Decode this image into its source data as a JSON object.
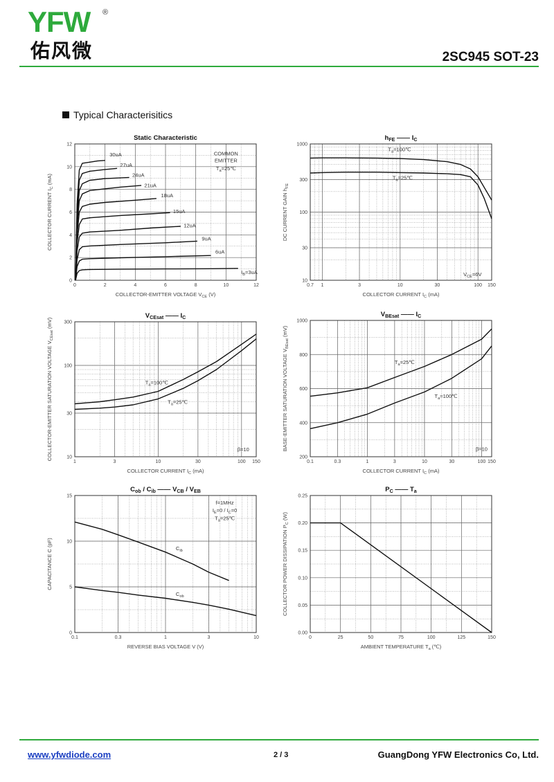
{
  "header": {
    "logo_text": "YFW",
    "logo_cn": "佑风微",
    "logo_reg": "®",
    "part": "2SC945  SOT-23",
    "section_title": "Typical  Characterisitics"
  },
  "footer": {
    "website": "www.yfwdiode.com",
    "page": "2 / 3",
    "company": "GuangDong YFW Electronics Co, Ltd."
  },
  "colors": {
    "brand_green": "#2eaa3c",
    "link_blue": "#1b3fc2",
    "curve": "#111111",
    "grid": "#666666"
  },
  "chart_data": [
    {
      "id": "static",
      "type": "line",
      "title": "Static Characteristic",
      "xlabel": "COLLECTOR-EMITTER VOLTAGE   V_CE   (V)",
      "ylabel": "COLLECTOR CURRENT   I_C   (mA)",
      "xscale": "linear",
      "yscale": "linear",
      "xlim": [
        0,
        12
      ],
      "ylim": [
        0,
        12
      ],
      "xticks": [
        0,
        2,
        4,
        6,
        8,
        10,
        12
      ],
      "yticks": [
        0,
        2,
        4,
        6,
        8,
        10,
        12
      ],
      "xtick_labels": [
        "0",
        "2",
        "4",
        "6",
        "8",
        "10",
        "12"
      ],
      "ytick_labels": [
        "0",
        "2",
        "4",
        "6",
        "8",
        "10",
        "12"
      ],
      "annotations": [
        {
          "text": "COMMON",
          "x": 10.0,
          "y": 11.0
        },
        {
          "text": "EMITTER",
          "x": 10.0,
          "y": 10.4
        },
        {
          "text": "T_a=25℃",
          "x": 10.0,
          "y": 9.7
        }
      ],
      "series": [
        {
          "name": "I_B=3uA",
          "x": [
            0.05,
            0.15,
            0.3,
            0.5,
            1,
            3,
            6,
            9,
            10.8
          ],
          "y": [
            0,
            0.6,
            0.85,
            0.92,
            0.95,
            0.98,
            1.0,
            1.02,
            1.05
          ],
          "label": "I_B=3uA",
          "label_x": 11.0,
          "label_y": 0.55
        },
        {
          "name": "6uA",
          "x": [
            0.05,
            0.15,
            0.3,
            0.5,
            1,
            3,
            6,
            9.0
          ],
          "y": [
            0,
            1.2,
            1.7,
            1.85,
            1.9,
            1.98,
            2.08,
            2.18
          ],
          "label": "6uA",
          "label_x": 9.3,
          "label_y": 2.35
        },
        {
          "name": "9uA",
          "x": [
            0.05,
            0.15,
            0.3,
            0.5,
            1,
            3,
            6,
            8.1
          ],
          "y": [
            0,
            1.8,
            2.7,
            2.95,
            3.02,
            3.15,
            3.3,
            3.45
          ],
          "label": "9uA",
          "label_x": 8.4,
          "label_y": 3.5
        },
        {
          "name": "12uA",
          "x": [
            0.05,
            0.15,
            0.3,
            0.5,
            1,
            3,
            5,
            7.0
          ],
          "y": [
            0,
            2.6,
            3.8,
            4.15,
            4.25,
            4.4,
            4.6,
            4.75
          ],
          "label": "12uA",
          "label_x": 7.2,
          "label_y": 4.65
        },
        {
          "name": "15uA",
          "x": [
            0.05,
            0.15,
            0.3,
            0.5,
            1,
            3,
            5,
            6.3
          ],
          "y": [
            0,
            3.3,
            4.9,
            5.4,
            5.5,
            5.7,
            5.85,
            5.95
          ],
          "label": "15uA",
          "label_x": 6.5,
          "label_y": 5.9
        },
        {
          "name": "18uA",
          "x": [
            0.05,
            0.15,
            0.3,
            0.5,
            1,
            2,
            4,
            5.4
          ],
          "y": [
            0,
            4.0,
            6.0,
            6.5,
            6.7,
            6.85,
            7.05,
            7.2
          ],
          "label": "18uA",
          "label_x": 5.7,
          "label_y": 7.3
        },
        {
          "name": "21uA",
          "x": [
            0.05,
            0.15,
            0.3,
            0.5,
            1,
            2,
            3,
            4.4
          ],
          "y": [
            0,
            4.7,
            7.0,
            7.6,
            7.9,
            8.05,
            8.2,
            8.35
          ],
          "label": "21uA",
          "label_x": 4.6,
          "label_y": 8.2
        },
        {
          "name": "24uA",
          "x": [
            0.05,
            0.15,
            0.3,
            0.5,
            1,
            2,
            3.6
          ],
          "y": [
            0,
            5.3,
            7.9,
            8.5,
            8.8,
            8.95,
            9.05
          ],
          "label": "24uA",
          "label_x": 3.8,
          "label_y": 9.1
        },
        {
          "name": "27uA",
          "x": [
            0.05,
            0.15,
            0.3,
            0.5,
            1,
            2,
            2.8
          ],
          "y": [
            0,
            6.0,
            8.8,
            9.4,
            9.6,
            9.75,
            9.85
          ],
          "label": "27uA",
          "label_x": 3.0,
          "label_y": 10.0
        },
        {
          "name": "30uA",
          "x": [
            0.05,
            0.15,
            0.3,
            0.5,
            1,
            1.5,
            2.0
          ],
          "y": [
            0,
            6.7,
            9.7,
            10.3,
            10.4,
            10.5,
            10.55
          ],
          "label": "30uA",
          "label_x": 2.3,
          "label_y": 10.9
        }
      ]
    },
    {
      "id": "hfe",
      "type": "line",
      "title": "h_FE —— I_C",
      "xlabel": "COLLECTOR CURRENT   I_C   (mA)",
      "ylabel": "DC CURRENT GAIN   h_FE",
      "xscale": "log",
      "yscale": "log",
      "xlim": [
        0.7,
        150
      ],
      "ylim": [
        10,
        1000
      ],
      "xticks": [
        0.7,
        1,
        3,
        10,
        30,
        100,
        150
      ],
      "yticks": [
        10,
        30,
        100,
        300,
        1000
      ],
      "xtick_labels": [
        "0.7",
        "1",
        "3",
        "10",
        "30",
        "100",
        "150"
      ],
      "ytick_labels": [
        "10",
        "30",
        "100",
        "300",
        "1000"
      ],
      "annotations": [
        {
          "text": "V_CE=6V",
          "x": 85,
          "y": 11.5
        }
      ],
      "series": [
        {
          "name": "T_a=100℃",
          "x": [
            0.7,
            1,
            2,
            5,
            10,
            20,
            40,
            60,
            80,
            100,
            150
          ],
          "y": [
            620,
            625,
            625,
            620,
            610,
            590,
            550,
            500,
            430,
            330,
            150
          ],
          "label": "T_a=100℃",
          "label_x": 7,
          "label_y": 780
        },
        {
          "name": "T_a=25℃",
          "x": [
            0.7,
            1,
            2,
            5,
            10,
            20,
            40,
            60,
            80,
            100,
            120,
            150
          ],
          "y": [
            375,
            380,
            385,
            385,
            380,
            375,
            365,
            355,
            330,
            250,
            160,
            80
          ],
          "label": "T_a=25℃",
          "label_x": 8,
          "label_y": 300
        }
      ]
    },
    {
      "id": "vcesat",
      "type": "line",
      "title": "V_CEsat —— I_C",
      "xlabel": "COLLECTOR CURRENT   I_C   (mA)",
      "ylabel": "COLLECTOR-EMITTER SATURATION VOLTAGE   V_CEsat   (mV)",
      "xscale": "log",
      "yscale": "log",
      "xlim": [
        1,
        150
      ],
      "ylim": [
        10,
        300
      ],
      "xticks": [
        1,
        3,
        10,
        30,
        100,
        150
      ],
      "yticks": [
        10,
        30,
        100,
        300
      ],
      "xtick_labels": [
        "1",
        "3",
        "10",
        "30",
        "100",
        "150"
      ],
      "ytick_labels": [
        "10",
        "30",
        "100",
        "300"
      ],
      "annotations": [
        {
          "text": "β=10",
          "x": 105,
          "y": 11.5
        }
      ],
      "series": [
        {
          "name": "T_a=100℃",
          "x": [
            1,
            2,
            3,
            5,
            10,
            20,
            30,
            50,
            100,
            150
          ],
          "y": [
            38,
            40,
            42,
            45,
            52,
            70,
            85,
            110,
            170,
            220
          ],
          "label": "T_a=100℃",
          "label_x": 7,
          "label_y": 62
        },
        {
          "name": "T_a=25℃",
          "x": [
            1,
            2,
            3,
            5,
            10,
            20,
            30,
            50,
            100,
            150
          ],
          "y": [
            33,
            34,
            35,
            37,
            43,
            56,
            68,
            90,
            145,
            195
          ],
          "label": "T_a=25℃",
          "label_x": 13,
          "label_y": 38
        }
      ]
    },
    {
      "id": "vbesat",
      "type": "line",
      "title": "V_BEsat —— I_C",
      "xlabel": "COLLECTOR CURRENT   I_C   (mA)",
      "ylabel": "BASE-EMITTER SATURATION VOLTAGE   V_BEsat   (mV)",
      "xscale": "log",
      "yscale": "linear",
      "xlim": [
        0.1,
        150
      ],
      "ylim": [
        200,
        1000
      ],
      "xticks": [
        0.1,
        0.3,
        1,
        3,
        10,
        30,
        100,
        150
      ],
      "yticks": [
        200,
        400,
        600,
        800,
        1000
      ],
      "xtick_labels": [
        "0.1",
        "0.3",
        "1",
        "3",
        "10",
        "30",
        "100",
        "150"
      ],
      "ytick_labels": [
        "200",
        "400",
        "600",
        "800",
        "1000"
      ],
      "annotations": [
        {
          "text": "β=10",
          "x": 100,
          "y": 235
        }
      ],
      "series": [
        {
          "name": "T_a=25℃",
          "x": [
            0.1,
            0.3,
            1,
            3,
            10,
            30,
            100,
            150
          ],
          "y": [
            555,
            575,
            605,
            665,
            730,
            800,
            890,
            950
          ],
          "label": "T_a=25℃",
          "label_x": 3,
          "label_y": 745
        },
        {
          "name": "T_a=100℃",
          "x": [
            0.1,
            0.3,
            1,
            3,
            10,
            30,
            100,
            150
          ],
          "y": [
            365,
            400,
            450,
            515,
            580,
            660,
            775,
            850
          ],
          "label": "T_a=100℃",
          "label_x": 15,
          "label_y": 545
        }
      ]
    },
    {
      "id": "cap",
      "type": "line",
      "title": "C_ob / C_ib  ——  V_CB / V_EB",
      "xlabel": "REVERSE BIAS VOLTAGE   V   (V)",
      "ylabel": "CAPACITANCE   C   (pF)",
      "xscale": "log",
      "yscale": "linear",
      "xlim": [
        0.1,
        10
      ],
      "ylim": [
        0,
        15
      ],
      "xticks": [
        0.1,
        0.3,
        1,
        3,
        10
      ],
      "yticks": [
        0,
        5,
        10,
        15
      ],
      "xtick_labels": [
        "0.1",
        "0.3",
        "1",
        "3",
        "10"
      ],
      "ytick_labels": [
        "0",
        "5",
        "10",
        "15"
      ],
      "annotations": [
        {
          "text": "f=1MHz",
          "x": 4.5,
          "y": 14.0
        },
        {
          "text": "I_E=0 / I_C=0",
          "x": 4.5,
          "y": 13.2
        },
        {
          "text": "T_a=25℃",
          "x": 4.5,
          "y": 12.3
        }
      ],
      "series": [
        {
          "name": "C_ib",
          "x": [
            0.1,
            0.2,
            0.3,
            0.5,
            1,
            2,
            3,
            5
          ],
          "y": [
            12.1,
            11.3,
            10.7,
            9.9,
            8.8,
            7.5,
            6.6,
            5.7
          ],
          "label": "C_ib",
          "label_x": 1.3,
          "label_y": 9.0
        },
        {
          "name": "C_ob",
          "x": [
            0.1,
            0.2,
            0.3,
            0.5,
            1,
            2,
            3,
            5,
            10
          ],
          "y": [
            5.0,
            4.6,
            4.4,
            4.1,
            3.75,
            3.3,
            3.0,
            2.55,
            1.85
          ],
          "label": "C_ob",
          "label_x": 1.3,
          "label_y": 4.0
        }
      ]
    },
    {
      "id": "power",
      "type": "line",
      "title": "P_C  ——  T_a",
      "xlabel": "AMBIENT TEMPERATURE   T_a   (℃)",
      "ylabel": "COLLECTOR POWER DISSIPATION   P_C   (W)",
      "xscale": "linear",
      "yscale": "linear",
      "xlim": [
        0,
        150
      ],
      "ylim": [
        0,
        0.25
      ],
      "xticks": [
        0,
        25,
        50,
        75,
        100,
        125,
        150
      ],
      "yticks": [
        0,
        0.05,
        0.1,
        0.15,
        0.2,
        0.25
      ],
      "xtick_labels": [
        "0",
        "25",
        "50",
        "75",
        "100",
        "125",
        "150"
      ],
      "ytick_labels": [
        "0.00",
        "0.05",
        "0.10",
        "0.15",
        "0.20",
        "0.25"
      ],
      "annotations": [],
      "series": [
        {
          "name": "P_C",
          "x": [
            0,
            25,
            150
          ],
          "y": [
            0.2,
            0.2,
            0
          ],
          "label": "",
          "label_x": 0,
          "label_y": 0
        }
      ]
    }
  ]
}
